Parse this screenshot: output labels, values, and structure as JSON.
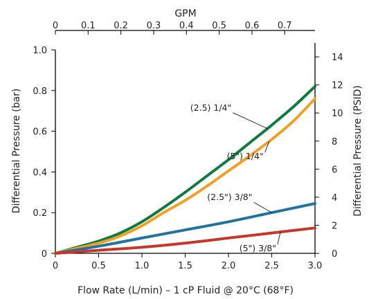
{
  "chart_data": {
    "type": "line",
    "title": "",
    "xlabel": "Flow Rate (L/min) – 1 cP Fluid @ 20°C (68°F)",
    "ylabel": "Differential Pressure (bar)",
    "x2label": "GPM",
    "y2label": "Differential Pressure (PSID)",
    "xlim": [
      0,
      3.0
    ],
    "ylim": [
      0,
      1.0
    ],
    "x2lim": [
      0,
      0.7925
    ],
    "y2lim": [
      0,
      14.5
    ],
    "x_ticks": [
      {
        "value": 0,
        "label": "0"
      },
      {
        "value": 0.5,
        "label": "0.5"
      },
      {
        "value": 1.0,
        "label": "1.0"
      },
      {
        "value": 1.5,
        "label": "1.5"
      },
      {
        "value": 2.0,
        "label": "2.0"
      },
      {
        "value": 2.5,
        "label": "2.5"
      },
      {
        "value": 3.0,
        "label": "3.0"
      }
    ],
    "y_ticks": [
      {
        "value": 0,
        "label": "0"
      },
      {
        "value": 0.2,
        "label": "0.2"
      },
      {
        "value": 0.4,
        "label": "0.4"
      },
      {
        "value": 0.6,
        "label": "0.6"
      },
      {
        "value": 0.8,
        "label": "0.8"
      },
      {
        "value": 1.0,
        "label": "1.0"
      }
    ],
    "x2_ticks": [
      {
        "value": 0,
        "label": "0"
      },
      {
        "value": 0.1,
        "label": "0.1"
      },
      {
        "value": 0.2,
        "label": "0.2"
      },
      {
        "value": 0.3,
        "label": "0.3"
      },
      {
        "value": 0.4,
        "label": "0.4"
      },
      {
        "value": 0.5,
        "label": "0.5"
      },
      {
        "value": 0.6,
        "label": "0.6"
      },
      {
        "value": 0.7,
        "label": "0.7"
      }
    ],
    "y2_ticks": [
      {
        "value": 0,
        "label": "0"
      },
      {
        "value": 2,
        "label": "2"
      },
      {
        "value": 4,
        "label": "4"
      },
      {
        "value": 6,
        "label": "6"
      },
      {
        "value": 8,
        "label": "8"
      },
      {
        "value": 10,
        "label": "10"
      },
      {
        "value": 12,
        "label": "12"
      },
      {
        "value": 14,
        "label": "14"
      }
    ],
    "grid": false,
    "series": [
      {
        "name": "(2.5) 1/4\"",
        "color": "#127a3e",
        "x": [
          0,
          0.25,
          0.5,
          0.75,
          1.0,
          1.25,
          1.5,
          1.75,
          2.0,
          2.25,
          2.5,
          2.75,
          3.0
        ],
        "y": [
          0.0,
          0.03,
          0.06,
          0.1,
          0.155,
          0.225,
          0.3,
          0.38,
          0.46,
          0.545,
          0.63,
          0.72,
          0.82
        ]
      },
      {
        "name": "(5\") 1/4\"",
        "color": "#f0a028",
        "x": [
          0,
          0.25,
          0.5,
          0.75,
          1.0,
          1.25,
          1.5,
          1.75,
          2.0,
          2.25,
          2.5,
          2.75,
          3.0
        ],
        "y": [
          0.0,
          0.025,
          0.05,
          0.085,
          0.135,
          0.2,
          0.26,
          0.33,
          0.405,
          0.48,
          0.56,
          0.65,
          0.76
        ]
      },
      {
        "name": "(2.5\") 3/8\"",
        "color": "#2273a0",
        "x": [
          0,
          0.5,
          1.0,
          1.5,
          2.0,
          2.5,
          3.0
        ],
        "y": [
          0.0,
          0.035,
          0.075,
          0.115,
          0.155,
          0.2,
          0.245
        ]
      },
      {
        "name": "(5\") 3/8\"",
        "color": "#c6372a",
        "x": [
          0,
          0.5,
          1.0,
          1.5,
          2.0,
          2.5,
          3.0
        ],
        "y": [
          0.0,
          0.015,
          0.03,
          0.05,
          0.075,
          0.1,
          0.125
        ]
      }
    ],
    "annotations": [
      {
        "text": "(2.5) 1/4\"",
        "series": 0,
        "at_x": 2.45
      },
      {
        "text": "(5\") 1/4\"",
        "series": 1,
        "at_x": 2.47
      },
      {
        "text": "(2.5\") 3/8\"",
        "series": 2,
        "at_x": 2.5
      },
      {
        "text": "(5\") 3/8\"",
        "series": 3,
        "at_x": 2.6
      }
    ]
  }
}
